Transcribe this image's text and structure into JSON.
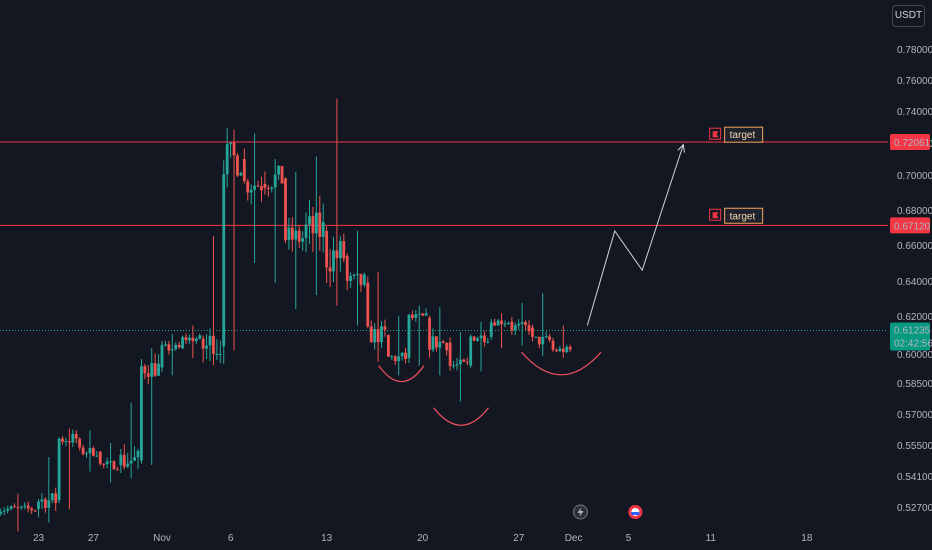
{
  "currency_button": "USDT",
  "colors": {
    "background": "#131722",
    "up": "#26a69a",
    "down": "#ef5350",
    "resistance": "#f23645",
    "projection": "#d1d4dc",
    "pattern_curve": "#f7525f",
    "current_line": "#26a69a"
  },
  "chart_data": {
    "type": "candlestick",
    "y_axis": {
      "ticks": [
        "0.78000",
        "0.76000",
        "0.74000",
        "0.72000",
        "0.70000",
        "0.68000",
        "0.66000",
        "0.64000",
        "0.62000",
        "0.60000",
        "0.58500",
        "0.57000",
        "0.55500",
        "0.54100",
        "0.52700"
      ],
      "values": [
        0.78,
        0.76,
        0.74,
        0.72,
        0.7,
        0.68,
        0.66,
        0.64,
        0.62,
        0.6,
        0.585,
        0.57,
        0.555,
        0.541,
        0.527
      ]
    },
    "x_axis": {
      "ticks": [
        "23",
        "27",
        "Nov",
        "6",
        "13",
        "20",
        "27",
        "Dec",
        "5",
        "11",
        "18"
      ],
      "positions_days": [
        -9,
        -5,
        0,
        5,
        12,
        19,
        26,
        30,
        34,
        40,
        47
      ]
    },
    "grid": false,
    "levels": [
      {
        "price": 0.72061,
        "label": "0.72061",
        "style": "resistance"
      },
      {
        "price": 0.6712,
        "label": "0.67120",
        "style": "resistance"
      }
    ],
    "current": {
      "price": 0.61235,
      "label": "0.61235",
      "countdown": "02:42:56"
    },
    "annotations": [
      {
        "text": "target",
        "day": 40.5,
        "price": 0.7255,
        "icon": "flag-icon"
      },
      {
        "text": "target",
        "day": 40.5,
        "price": 0.677,
        "icon": "flag-icon"
      }
    ],
    "projection_path": [
      {
        "day": 31.0,
        "price": 0.615
      },
      {
        "day": 33.0,
        "price": 0.668
      },
      {
        "day": 35.0,
        "price": 0.646
      },
      {
        "day": 38.0,
        "price": 0.719
      }
    ],
    "pattern_curves": [
      {
        "from_day": 15.8,
        "to_day": 19.1,
        "top": 0.594,
        "bottom": 0.588
      },
      {
        "from_day": 19.8,
        "to_day": 23.8,
        "top": 0.573,
        "bottom": 0.568
      },
      {
        "from_day": 26.2,
        "to_day": 32.0,
        "top": 0.601,
        "bottom": 0.596
      }
    ],
    "candles": [
      {
        "day": -12.0,
        "o": 0.521,
        "h": 0.53,
        "l": 0.516,
        "c": 0.526
      },
      {
        "day": -9.0,
        "o": 0.526,
        "h": 0.536,
        "l": 0.52,
        "c": 0.53
      },
      {
        "day": -7.5,
        "o": 0.53,
        "h": 0.563,
        "l": 0.526,
        "c": 0.558
      },
      {
        "day": -6.0,
        "o": 0.558,
        "h": 0.562,
        "l": 0.548,
        "c": 0.552
      },
      {
        "day": -4.5,
        "o": 0.552,
        "h": 0.556,
        "l": 0.538,
        "c": 0.546
      },
      {
        "day": -3.0,
        "o": 0.546,
        "h": 0.551,
        "l": 0.54,
        "c": 0.548
      },
      {
        "day": -1.5,
        "o": 0.548,
        "h": 0.6,
        "l": 0.546,
        "c": 0.593
      },
      {
        "day": 0.0,
        "o": 0.593,
        "h": 0.606,
        "l": 0.589,
        "c": 0.603
      },
      {
        "day": 1.5,
        "o": 0.603,
        "h": 0.615,
        "l": 0.598,
        "c": 0.608
      },
      {
        "day": 3.0,
        "o": 0.608,
        "h": 0.61,
        "l": 0.6,
        "c": 0.604
      },
      {
        "day": 4.5,
        "o": 0.604,
        "h": 0.72,
        "l": 0.602,
        "c": 0.71
      },
      {
        "day": 6.0,
        "o": 0.71,
        "h": 0.726,
        "l": 0.65,
        "c": 0.695
      },
      {
        "day": 7.5,
        "o": 0.695,
        "h": 0.71,
        "l": 0.654,
        "c": 0.698
      },
      {
        "day": 9.0,
        "o": 0.698,
        "h": 0.702,
        "l": 0.624,
        "c": 0.664
      },
      {
        "day": 10.5,
        "o": 0.664,
        "h": 0.675,
        "l": 0.638,
        "c": 0.668
      },
      {
        "day": 12.0,
        "o": 0.668,
        "h": 0.748,
        "l": 0.626,
        "c": 0.654
      },
      {
        "day": 13.5,
        "o": 0.654,
        "h": 0.668,
        "l": 0.627,
        "c": 0.639
      },
      {
        "day": 15.0,
        "o": 0.639,
        "h": 0.645,
        "l": 0.603,
        "c": 0.61
      },
      {
        "day": 16.5,
        "o": 0.61,
        "h": 0.614,
        "l": 0.589,
        "c": 0.598
      },
      {
        "day": 18.0,
        "o": 0.598,
        "h": 0.626,
        "l": 0.594,
        "c": 0.619
      },
      {
        "day": 19.5,
        "o": 0.619,
        "h": 0.625,
        "l": 0.602,
        "c": 0.606
      },
      {
        "day": 21.0,
        "o": 0.606,
        "h": 0.61,
        "l": 0.576,
        "c": 0.594
      },
      {
        "day": 22.5,
        "o": 0.594,
        "h": 0.613,
        "l": 0.591,
        "c": 0.609
      },
      {
        "day": 24.0,
        "o": 0.609,
        "h": 0.621,
        "l": 0.603,
        "c": 0.617
      },
      {
        "day": 25.5,
        "o": 0.617,
        "h": 0.622,
        "l": 0.609,
        "c": 0.614
      },
      {
        "day": 27.0,
        "o": 0.614,
        "h": 0.633,
        "l": 0.6,
        "c": 0.607
      },
      {
        "day": 28.5,
        "o": 0.607,
        "h": 0.615,
        "l": 0.598,
        "c": 0.602
      },
      {
        "day": 30.0,
        "o": 0.602,
        "h": 0.614,
        "l": 0.599,
        "c": 0.612
      }
    ]
  },
  "events": [
    {
      "icon": "lightning-icon",
      "day": 30.5
    },
    {
      "icon": "earnings-icon",
      "day": 34.5
    }
  ]
}
